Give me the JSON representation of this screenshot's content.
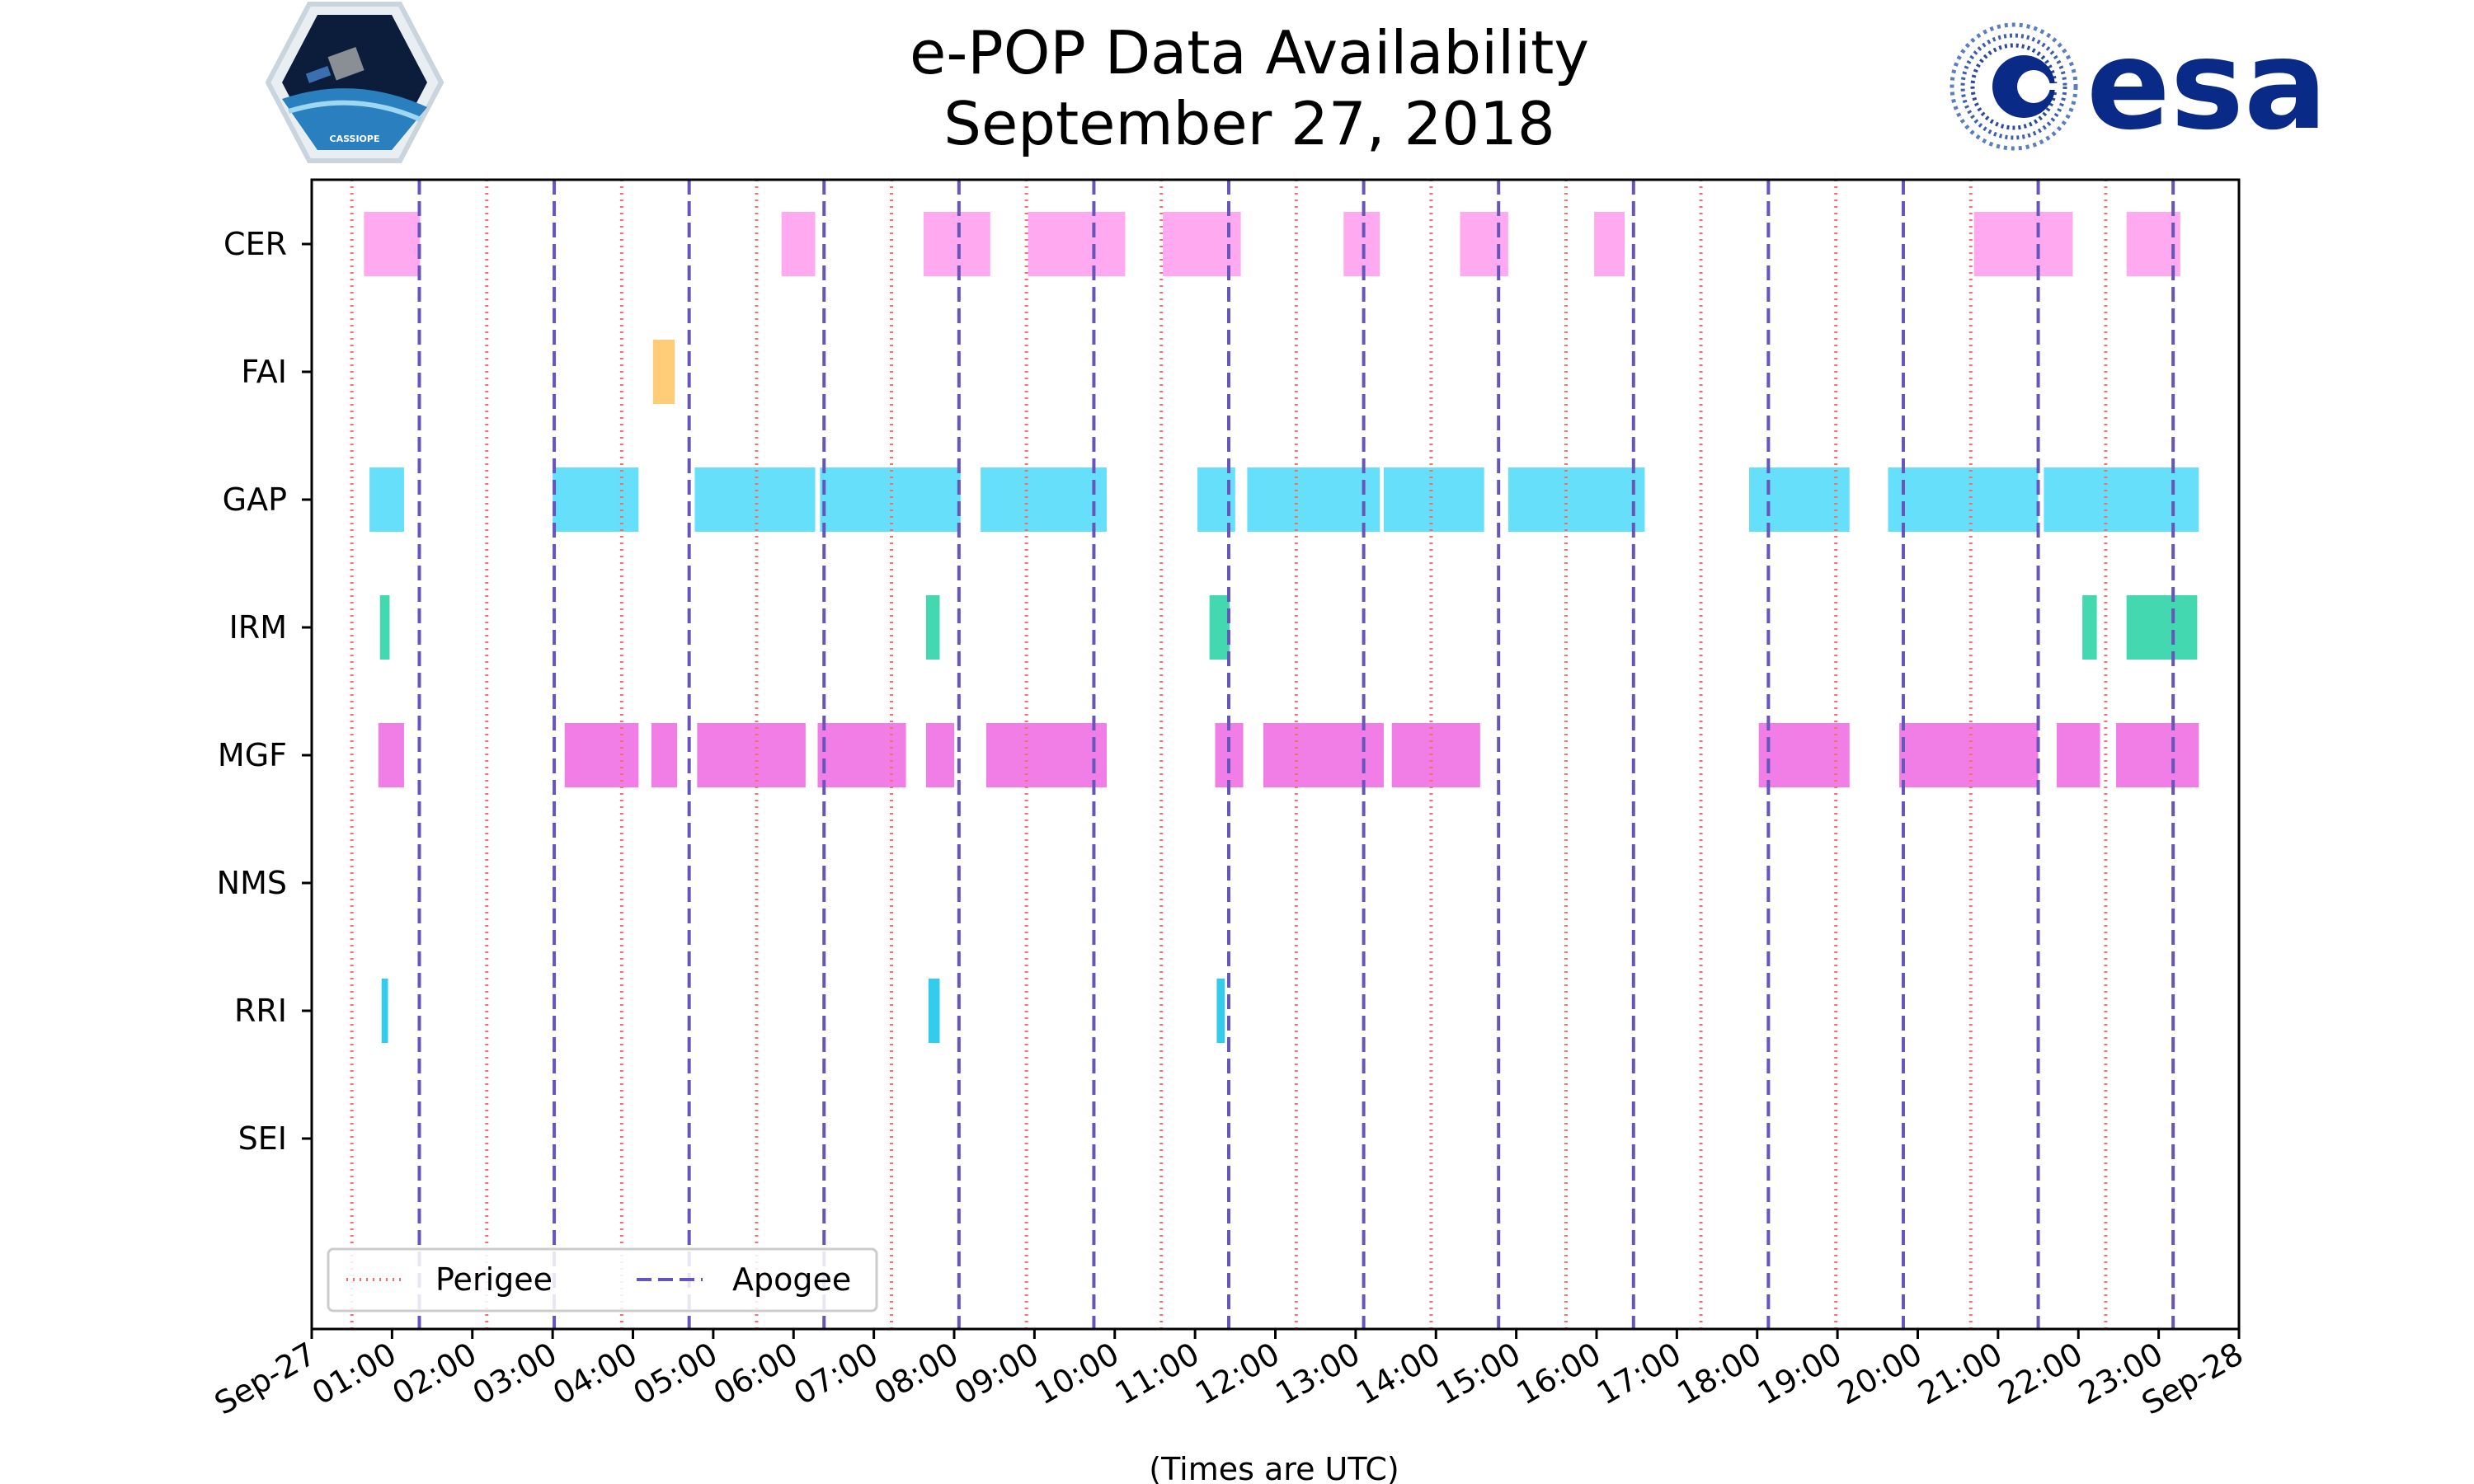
{
  "chart_data": {
    "type": "timeline",
    "title": "e-POP Data Availability",
    "subtitle": "September 27, 2018",
    "xlabel": "(Times are UTC)",
    "x_tick_labels": [
      "Sep-27",
      "01:00",
      "02:00",
      "03:00",
      "04:00",
      "05:00",
      "06:00",
      "07:00",
      "08:00",
      "09:00",
      "10:00",
      "11:00",
      "12:00",
      "13:00",
      "14:00",
      "15:00",
      "16:00",
      "17:00",
      "18:00",
      "19:00",
      "20:00",
      "21:00",
      "22:00",
      "23:00",
      "Sep-28"
    ],
    "x_range_hours": [
      0,
      24
    ],
    "instruments": [
      "CER",
      "FAI",
      "GAP",
      "IRM",
      "MGF",
      "NMS",
      "RRI",
      "SEI"
    ],
    "colors": {
      "CER": "#ffaaf0",
      "FAI": "#ffcc77",
      "GAP": "#66dffa",
      "IRM": "#44d8b0",
      "MGF": "#f07ee6",
      "NMS": "#cccccc",
      "RRI": "#33ccee",
      "SEI": "#cccccc",
      "perigee": "#f07070",
      "apogee": "#6655bb"
    },
    "intervals": {
      "CER": [
        [
          0.65,
          1.35
        ],
        [
          5.85,
          6.27
        ],
        [
          7.62,
          8.45
        ],
        [
          8.92,
          10.13
        ],
        [
          10.6,
          11.57
        ],
        [
          12.85,
          13.3
        ],
        [
          14.3,
          14.9
        ],
        [
          15.97,
          16.35
        ],
        [
          20.7,
          21.93
        ],
        [
          22.6,
          23.27
        ]
      ],
      "FAI": [
        [
          4.25,
          4.52
        ]
      ],
      "GAP": [
        [
          0.72,
          1.15
        ],
        [
          3.0,
          4.07
        ],
        [
          4.77,
          6.27
        ],
        [
          6.33,
          8.08
        ],
        [
          8.33,
          9.9
        ],
        [
          11.03,
          11.5
        ],
        [
          11.65,
          13.3
        ],
        [
          13.35,
          14.6
        ],
        [
          14.9,
          16.6
        ],
        [
          17.9,
          19.15
        ],
        [
          19.63,
          21.5
        ],
        [
          21.57,
          23.5
        ]
      ],
      "IRM": [
        [
          0.85,
          0.97
        ],
        [
          7.65,
          7.82
        ],
        [
          11.18,
          11.43
        ],
        [
          22.05,
          22.23
        ],
        [
          22.6,
          23.48
        ]
      ],
      "MGF": [
        [
          0.83,
          1.15
        ],
        [
          3.15,
          4.07
        ],
        [
          4.23,
          4.55
        ],
        [
          4.8,
          6.15
        ],
        [
          6.3,
          7.4
        ],
        [
          7.65,
          8.0
        ],
        [
          8.4,
          9.9
        ],
        [
          11.25,
          11.6
        ],
        [
          11.85,
          13.35
        ],
        [
          13.45,
          14.55
        ],
        [
          18.02,
          19.15
        ],
        [
          19.77,
          21.5
        ],
        [
          21.73,
          22.27
        ],
        [
          22.47,
          23.5
        ]
      ],
      "NMS": [],
      "RRI": [
        [
          0.87,
          0.95
        ],
        [
          7.68,
          7.82
        ],
        [
          11.27,
          11.37
        ]
      ],
      "SEI": []
    },
    "perigee_hours": [
      0.5,
      2.18,
      3.86,
      5.54,
      7.22,
      8.9,
      10.58,
      12.26,
      13.94,
      15.62,
      17.3,
      18.98,
      20.66,
      22.34
    ],
    "apogee_hours": [
      1.34,
      3.02,
      4.7,
      6.38,
      8.06,
      9.74,
      11.42,
      13.1,
      14.78,
      16.46,
      18.14,
      19.82,
      21.5,
      23.18
    ],
    "legend": [
      {
        "label": "Perigee",
        "style": "dotted"
      },
      {
        "label": "Apogee",
        "style": "dashed"
      }
    ],
    "legend_position": "bottom-left"
  },
  "logos": {
    "left": "CASSIOPE",
    "right": "esa"
  }
}
